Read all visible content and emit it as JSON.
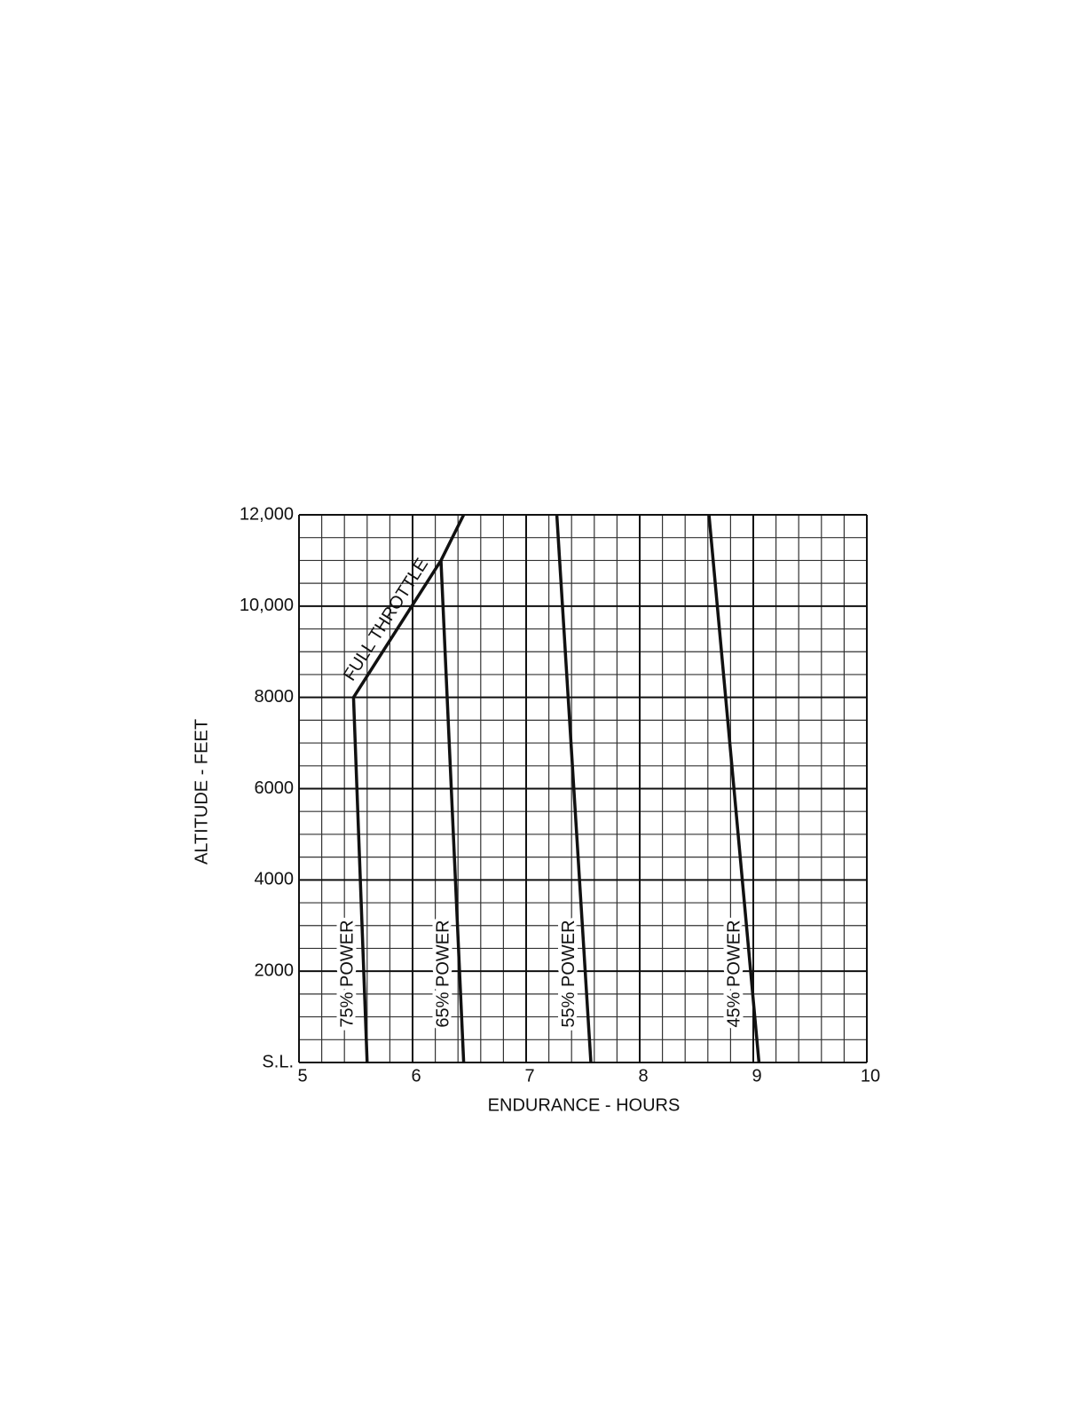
{
  "chart_data": {
    "type": "line",
    "xlabel": "ENDURANCE - HOURS",
    "ylabel": "ALTITUDE - FEET",
    "xlim": [
      5,
      10
    ],
    "ylim": [
      0,
      12000
    ],
    "xticks": [
      5,
      6,
      7,
      8,
      9,
      10
    ],
    "yticks": [
      {
        "value": 0,
        "label": "S.L."
      },
      2000,
      4000,
      6000,
      8000,
      {
        "value": 10000,
        "label": "10,000"
      },
      {
        "value": 12000,
        "label": "12,000"
      }
    ],
    "grid": true,
    "xgrid_step": 0.2,
    "ygrid_step": 500,
    "series": [
      {
        "name": "75% POWER",
        "color": "#111111",
        "x": [
          5.6,
          5.48
        ],
        "y": [
          0,
          8000
        ]
      },
      {
        "name": "FULL THROTTLE",
        "color": "#111111",
        "x": [
          5.48,
          6.25,
          6.45
        ],
        "y": [
          8000,
          11000,
          12000
        ]
      },
      {
        "name": "65% POWER",
        "color": "#111111",
        "x": [
          6.45,
          6.25
        ],
        "y": [
          0,
          11000
        ]
      },
      {
        "name": "55% POWER",
        "color": "#111111",
        "x": [
          7.57,
          7.27
        ],
        "y": [
          0,
          12000
        ]
      },
      {
        "name": "45% POWER",
        "color": "#111111",
        "x": [
          9.05,
          8.61
        ],
        "y": [
          0,
          12000
        ]
      }
    ]
  }
}
